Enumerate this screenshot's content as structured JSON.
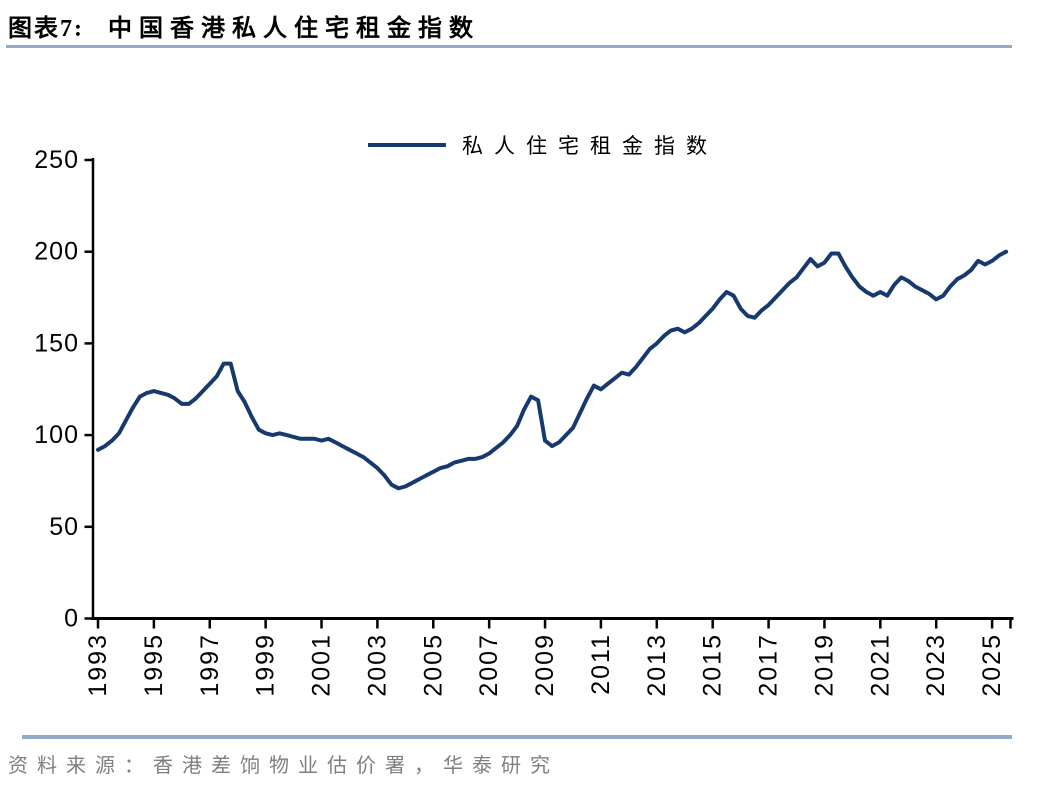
{
  "page": {
    "figure_label": "图表7:",
    "figure_title": "中国香港私人住宅租金指数",
    "source_note": "资料来源：香港差饷物业估价署，华泰研究"
  },
  "legend": {
    "label": "私人住宅租金指数"
  },
  "colors": {
    "line": "#173A6E",
    "divider": "#92ACC8",
    "axis": "#000000",
    "source_text": "#7F7F7F"
  },
  "chart_data": {
    "type": "line",
    "title": "中国香港私人住宅租金指数",
    "xlabel": "",
    "ylabel": "",
    "ylim": [
      0,
      250
    ],
    "y_ticks": [
      0,
      50,
      100,
      150,
      200,
      250
    ],
    "x_tick_labels": [
      "1993",
      "1995",
      "1997",
      "1999",
      "2001",
      "2003",
      "2005",
      "2007",
      "2009",
      "2011",
      "2013",
      "2015",
      "2017",
      "2019",
      "2021",
      "2023",
      "2025"
    ],
    "grid": false,
    "legend_position": "top-center",
    "x_start": 1993.0,
    "x_step_years": 0.25,
    "series": [
      {
        "name": "私人住宅租金指数",
        "values": [
          92,
          94,
          97,
          101,
          108,
          115,
          121,
          123,
          124,
          123,
          122,
          120,
          117,
          117,
          120,
          124,
          128,
          132,
          139,
          139,
          124,
          118,
          110,
          103,
          101,
          100,
          101,
          100,
          99,
          98,
          98,
          98,
          97,
          98,
          96,
          94,
          92,
          90,
          88,
          85,
          82,
          78,
          73,
          71,
          72,
          74,
          76,
          78,
          80,
          82,
          83,
          85,
          86,
          87,
          87,
          88,
          90,
          93,
          96,
          100,
          105,
          114,
          121,
          119,
          97,
          94,
          96,
          100,
          104,
          112,
          120,
          127,
          125,
          128,
          131,
          134,
          133,
          137,
          142,
          147,
          150,
          154,
          157,
          158,
          156,
          158,
          161,
          165,
          169,
          174,
          178,
          176,
          169,
          165,
          164,
          168,
          171,
          175,
          179,
          183,
          186,
          191,
          196,
          192,
          194,
          199,
          199,
          192,
          186,
          181,
          178,
          176,
          178,
          176,
          182,
          186,
          184,
          181,
          179,
          177,
          174,
          176,
          181,
          185,
          187,
          190,
          195,
          193,
          195,
          198,
          200
        ]
      }
    ]
  }
}
